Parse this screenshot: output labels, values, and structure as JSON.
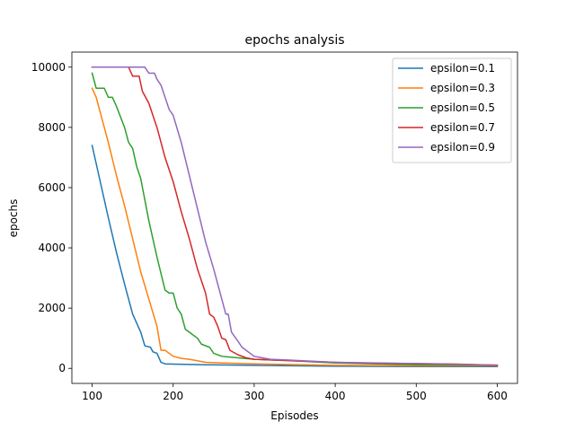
{
  "chart_data": {
    "type": "line",
    "title": "epochs analysis",
    "xlabel": "Episodes",
    "ylabel": "epochs",
    "xlim": [
      75,
      625
    ],
    "ylim": [
      -500,
      10500
    ],
    "xticks": [
      100,
      200,
      300,
      400,
      500,
      600
    ],
    "yticks": [
      0,
      2000,
      4000,
      6000,
      8000,
      10000
    ],
    "grid": false,
    "legend_position": "top-right",
    "series": [
      {
        "name": "epsilon=0.1",
        "color": "#1f77b4",
        "points": [
          [
            100,
            7400
          ],
          [
            110,
            6200
          ],
          [
            120,
            5000
          ],
          [
            130,
            3850
          ],
          [
            140,
            2800
          ],
          [
            150,
            1800
          ],
          [
            160,
            1200
          ],
          [
            165,
            750
          ],
          [
            172,
            700
          ],
          [
            175,
            550
          ],
          [
            180,
            500
          ],
          [
            185,
            200
          ],
          [
            190,
            150
          ],
          [
            200,
            140
          ],
          [
            240,
            120
          ],
          [
            300,
            100
          ],
          [
            400,
            70
          ],
          [
            500,
            60
          ],
          [
            600,
            60
          ]
        ]
      },
      {
        "name": "epsilon=0.3",
        "color": "#ff7f0e",
        "points": [
          [
            100,
            9300
          ],
          [
            105,
            9000
          ],
          [
            110,
            8500
          ],
          [
            120,
            7500
          ],
          [
            130,
            6400
          ],
          [
            140,
            5400
          ],
          [
            150,
            4300
          ],
          [
            160,
            3200
          ],
          [
            170,
            2300
          ],
          [
            180,
            1400
          ],
          [
            185,
            600
          ],
          [
            190,
            600
          ],
          [
            195,
            500
          ],
          [
            200,
            400
          ],
          [
            210,
            330
          ],
          [
            220,
            300
          ],
          [
            240,
            200
          ],
          [
            260,
            180
          ],
          [
            300,
            150
          ],
          [
            400,
            100
          ],
          [
            500,
            80
          ],
          [
            600,
            80
          ]
        ]
      },
      {
        "name": "epsilon=0.5",
        "color": "#2ca02c",
        "points": [
          [
            100,
            9800
          ],
          [
            105,
            9300
          ],
          [
            115,
            9300
          ],
          [
            120,
            9000
          ],
          [
            125,
            9000
          ],
          [
            130,
            8700
          ],
          [
            140,
            8000
          ],
          [
            145,
            7500
          ],
          [
            150,
            7300
          ],
          [
            155,
            6700
          ],
          [
            160,
            6300
          ],
          [
            165,
            5600
          ],
          [
            170,
            4900
          ],
          [
            180,
            3700
          ],
          [
            190,
            2600
          ],
          [
            195,
            2500
          ],
          [
            200,
            2500
          ],
          [
            205,
            2000
          ],
          [
            210,
            1800
          ],
          [
            215,
            1300
          ],
          [
            220,
            1200
          ],
          [
            230,
            1000
          ],
          [
            235,
            800
          ],
          [
            245,
            700
          ],
          [
            250,
            500
          ],
          [
            260,
            400
          ],
          [
            280,
            350
          ],
          [
            300,
            300
          ],
          [
            350,
            250
          ],
          [
            400,
            180
          ],
          [
            500,
            120
          ],
          [
            600,
            100
          ]
        ]
      },
      {
        "name": "epsilon=0.7",
        "color": "#d62728",
        "points": [
          [
            100,
            10000
          ],
          [
            145,
            10000
          ],
          [
            150,
            9700
          ],
          [
            158,
            9700
          ],
          [
            162,
            9200
          ],
          [
            170,
            8800
          ],
          [
            180,
            8000
          ],
          [
            190,
            7000
          ],
          [
            200,
            6200
          ],
          [
            210,
            5200
          ],
          [
            220,
            4300
          ],
          [
            230,
            3300
          ],
          [
            240,
            2500
          ],
          [
            245,
            1800
          ],
          [
            250,
            1700
          ],
          [
            255,
            1400
          ],
          [
            260,
            1000
          ],
          [
            265,
            950
          ],
          [
            270,
            600
          ],
          [
            280,
            450
          ],
          [
            290,
            350
          ],
          [
            300,
            300
          ],
          [
            350,
            250
          ],
          [
            400,
            200
          ],
          [
            450,
            170
          ],
          [
            500,
            160
          ],
          [
            550,
            140
          ],
          [
            600,
            100
          ]
        ]
      },
      {
        "name": "epsilon=0.9",
        "color": "#9467bd",
        "points": [
          [
            100,
            10000
          ],
          [
            165,
            10000
          ],
          [
            170,
            9800
          ],
          [
            177,
            9800
          ],
          [
            180,
            9600
          ],
          [
            185,
            9400
          ],
          [
            190,
            9000
          ],
          [
            195,
            8600
          ],
          [
            200,
            8400
          ],
          [
            210,
            7500
          ],
          [
            220,
            6400
          ],
          [
            230,
            5300
          ],
          [
            240,
            4200
          ],
          [
            250,
            3300
          ],
          [
            260,
            2300
          ],
          [
            265,
            1800
          ],
          [
            268,
            1800
          ],
          [
            272,
            1200
          ],
          [
            280,
            900
          ],
          [
            285,
            700
          ],
          [
            290,
            600
          ],
          [
            295,
            500
          ],
          [
            300,
            400
          ],
          [
            310,
            350
          ],
          [
            320,
            300
          ],
          [
            340,
            280
          ],
          [
            400,
            200
          ],
          [
            500,
            160
          ],
          [
            600,
            110
          ]
        ]
      }
    ]
  }
}
